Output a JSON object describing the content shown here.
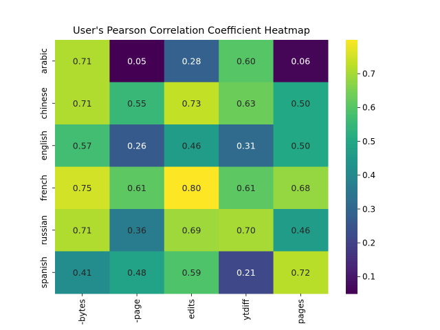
{
  "chart_data": {
    "type": "heatmap",
    "title": "User's Pearson Correlation Coefficient Heatmap",
    "rows": [
      "arabic",
      "chinese",
      "english",
      "french",
      "russian",
      "spanish"
    ],
    "columns": [
      "-bytes",
      "-page",
      "edits",
      "ytdiff",
      "pages"
    ],
    "values": [
      [
        0.71,
        0.05,
        0.28,
        0.6,
        0.06
      ],
      [
        0.71,
        0.55,
        0.73,
        0.63,
        0.5
      ],
      [
        0.57,
        0.26,
        0.46,
        0.31,
        0.5
      ],
      [
        0.75,
        0.61,
        0.8,
        0.61,
        0.68
      ],
      [
        0.71,
        0.36,
        0.69,
        0.7,
        0.46
      ],
      [
        0.41,
        0.48,
        0.59,
        0.21,
        0.72
      ]
    ],
    "colormap": "viridis",
    "vmin": 0.05,
    "vmax": 0.8,
    "colorbar_ticks": [
      "0.1",
      "0.2",
      "0.3",
      "0.4",
      "0.5",
      "0.6",
      "0.7"
    ]
  }
}
